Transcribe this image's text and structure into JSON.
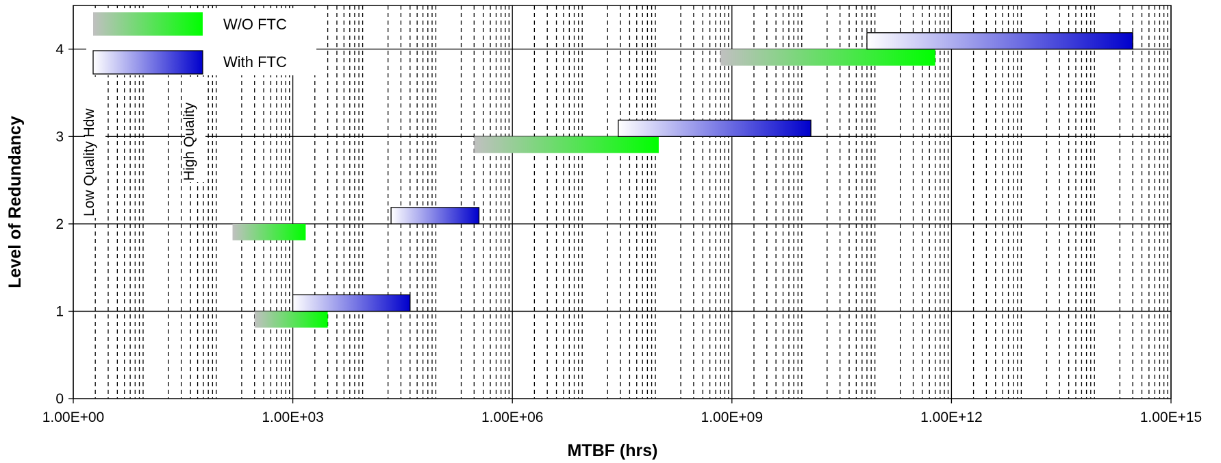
{
  "chart_data": {
    "type": "bar",
    "orientation": "horizontal-range",
    "xlabel": "MTBF (hrs)",
    "ylabel": "Level of Redundancy",
    "x_scale": "log",
    "xlim": [
      1,
      1000000000000000.0
    ],
    "ylim": [
      0,
      4.5
    ],
    "x_ticks": [
      {
        "value": 1,
        "label": "1.00E+00"
      },
      {
        "value": 1000.0,
        "label": "1.00E+03"
      },
      {
        "value": 1000000.0,
        "label": "1.00E+06"
      },
      {
        "value": 1000000000.0,
        "label": "1.00E+09"
      },
      {
        "value": 1000000000000.0,
        "label": "1.00E+12"
      },
      {
        "value": 1000000000000000.0,
        "label": "1.00E+15"
      }
    ],
    "y_ticks": [
      {
        "value": 0,
        "label": "0"
      },
      {
        "value": 1,
        "label": "1"
      },
      {
        "value": 2,
        "label": "2"
      },
      {
        "value": 3,
        "label": "3"
      },
      {
        "value": 4,
        "label": "4"
      }
    ],
    "grid": {
      "major": true,
      "minor_x": true
    },
    "legend_position": "top-left",
    "series": [
      {
        "name": "W/O FTC",
        "color_low": "#c0c0c0",
        "color_high": "#00ff00",
        "bars": [
          {
            "level": 1,
            "x_low": 300,
            "x_high": 3000
          },
          {
            "level": 2,
            "x_low": 150,
            "x_high": 1500
          },
          {
            "level": 3,
            "x_low": 300000,
            "x_high": 100000000
          },
          {
            "level": 4,
            "x_low": 700000000,
            "x_high": 600000000000
          }
        ]
      },
      {
        "name": "With FTC",
        "color_low": "#ffffff",
        "color_high": "#0000cc",
        "bars": [
          {
            "level": 1,
            "x_low": 1000,
            "x_high": 40000
          },
          {
            "level": 2,
            "x_low": 22000,
            "x_high": 350000
          },
          {
            "level": 3,
            "x_low": 28000000,
            "x_high": 12000000000
          },
          {
            "level": 4,
            "x_low": 70000000000,
            "x_high": 300000000000000
          }
        ]
      }
    ],
    "annotations": [
      {
        "text": "Low Quality Hdw",
        "orientation": "vertical"
      },
      {
        "text": "High Quality",
        "orientation": "vertical"
      }
    ]
  }
}
